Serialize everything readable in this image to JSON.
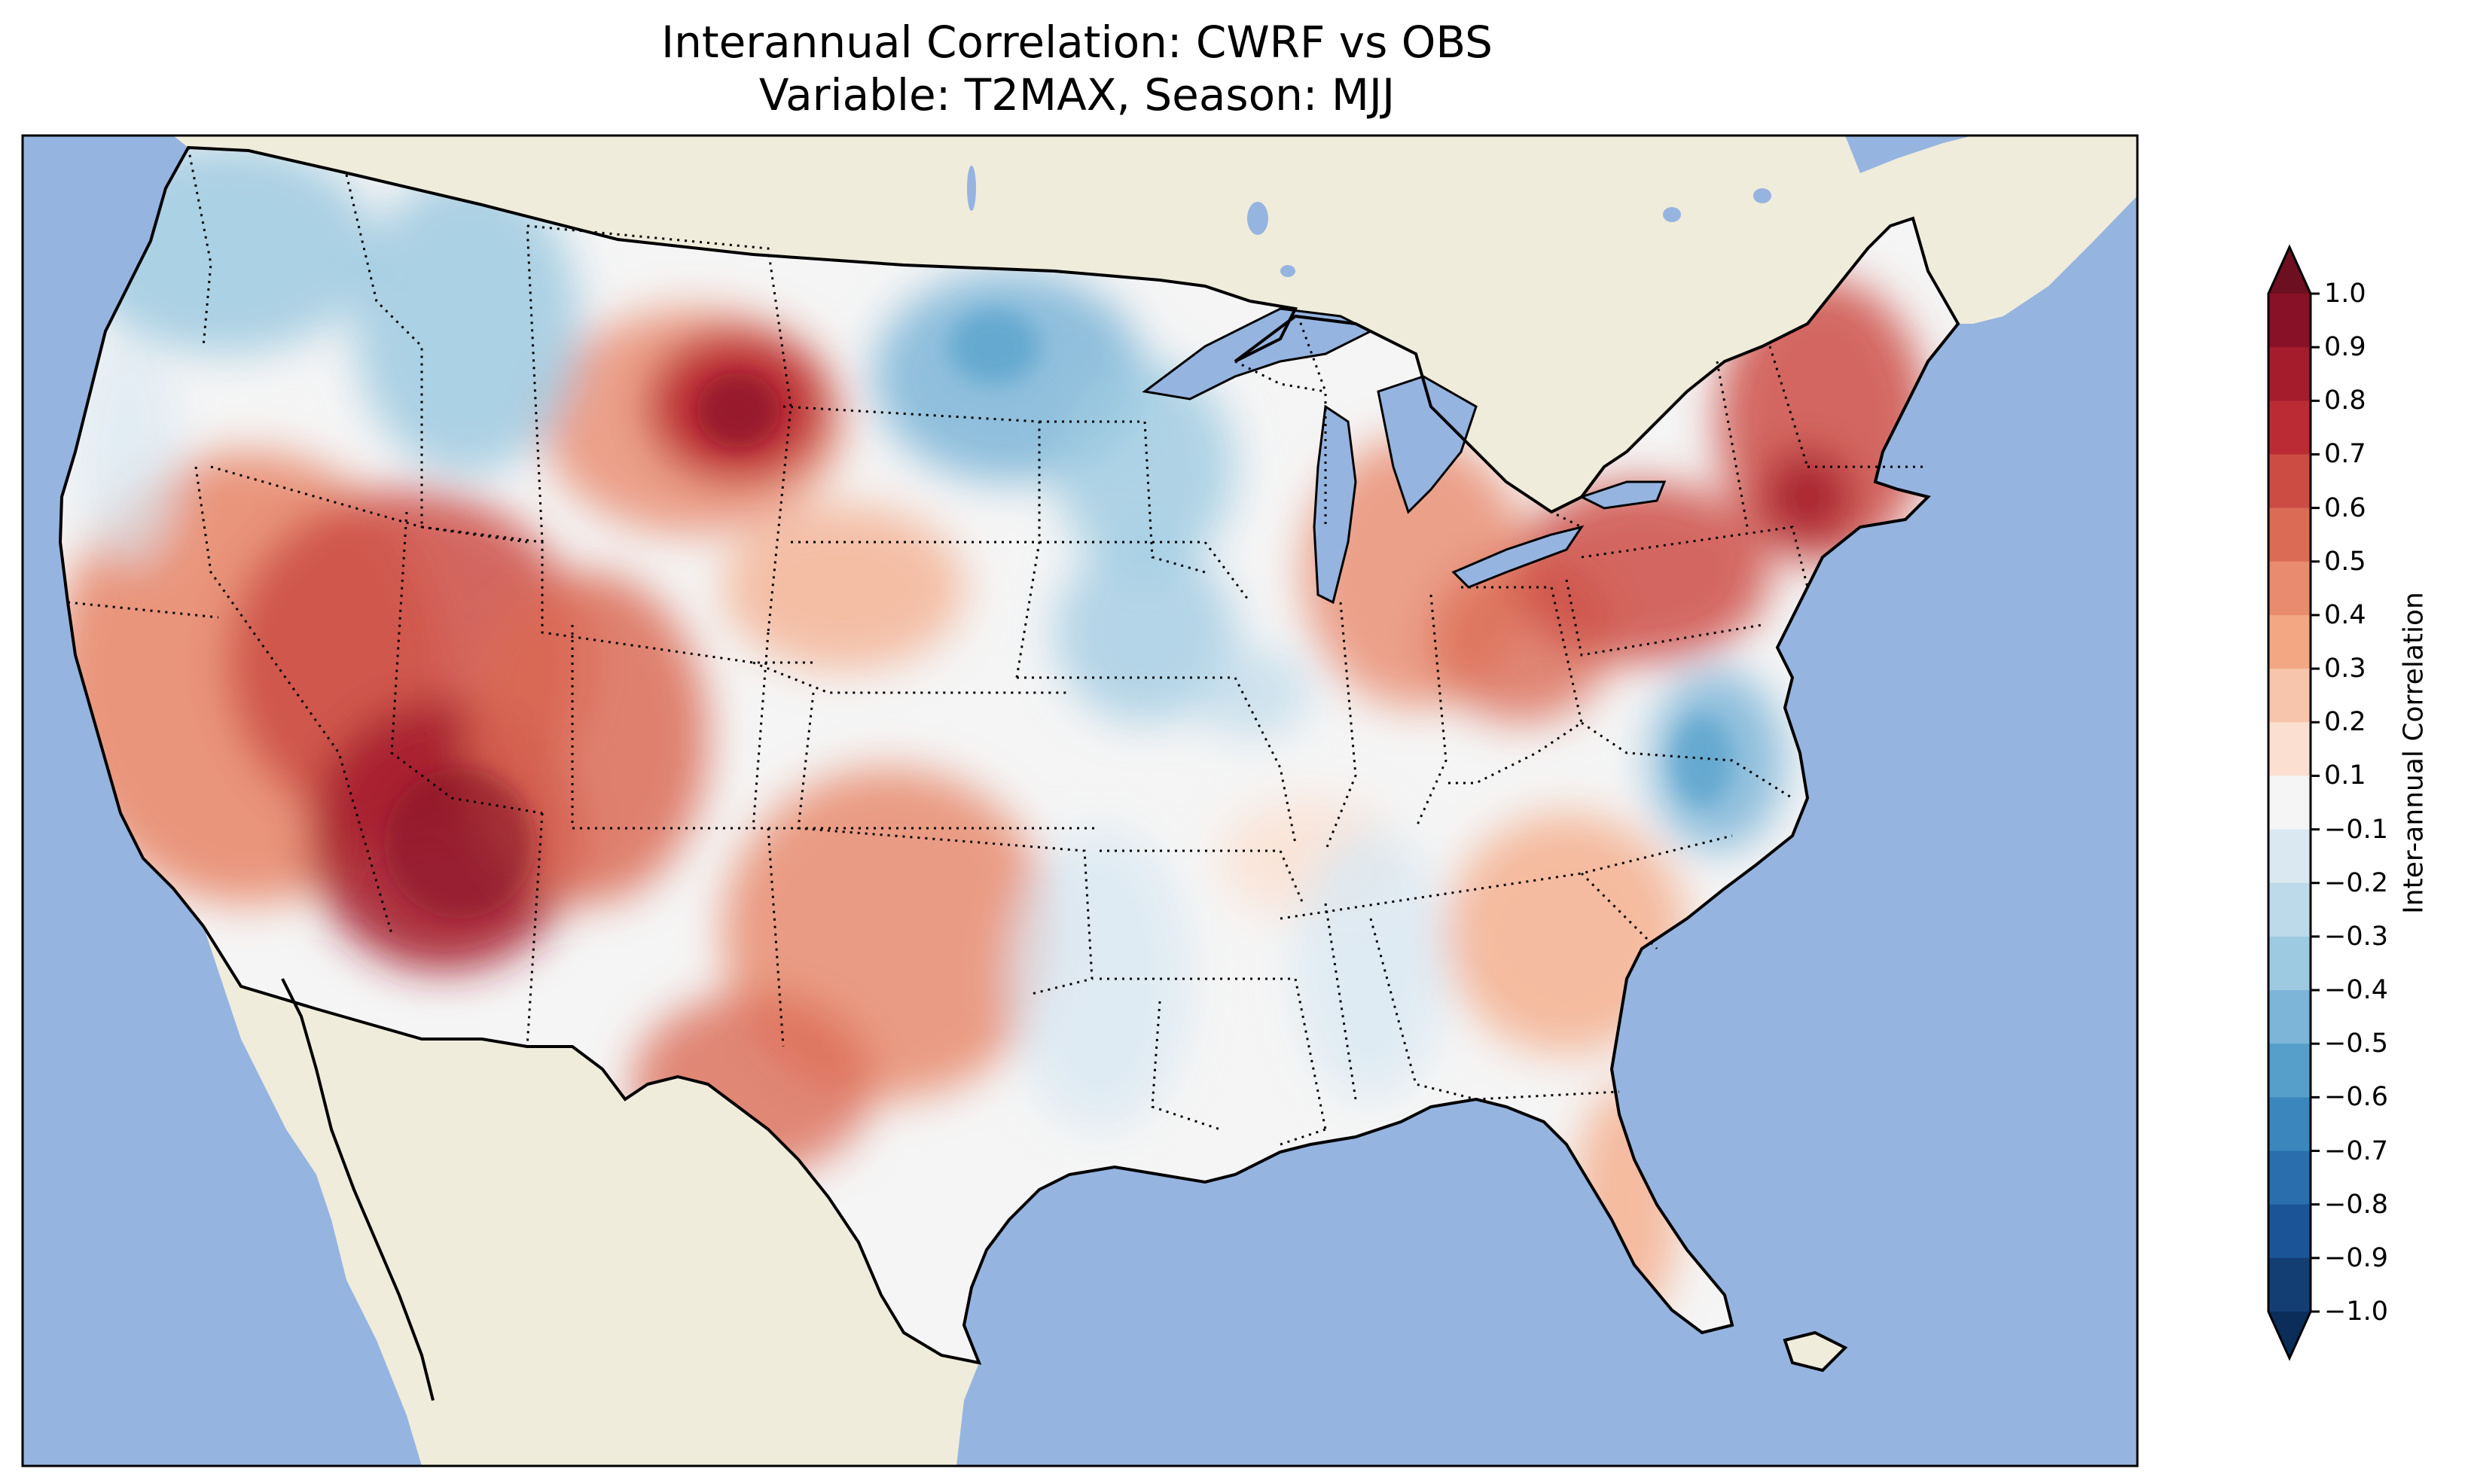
{
  "title_line1": "Interannual Correlation: CWRF vs OBS",
  "title_line2": "Variable: T2MAX, Season: MJJ",
  "colorbar": {
    "label": "Inter-annual Correlation",
    "ticks": [
      "1.0",
      "0.9",
      "0.8",
      "0.7",
      "0.6",
      "0.5",
      "0.4",
      "0.3",
      "0.2",
      "0.1",
      "−0.1",
      "−0.2",
      "−0.3",
      "−0.4",
      "−0.5",
      "−0.6",
      "−0.7",
      "−0.8",
      "−0.9",
      "−1.0"
    ],
    "colors_top_to_bottom": [
      "#891127",
      "#a51c2d",
      "#bb2b34",
      "#cc4c44",
      "#db6b55",
      "#e88b6e",
      "#f4a783",
      "#f7c5ab",
      "#fbe0d1",
      "#f5f5f5",
      "#dae8f2",
      "#bcdaea",
      "#9dcae1",
      "#7cb5d7",
      "#569fcb",
      "#3b86bd",
      "#2a6ead",
      "#1b5497",
      "#133e74"
    ],
    "over_color": "#6c0f21",
    "under_color": "#0b2d5a"
  },
  "map_colors": {
    "ocean": "#96b4e0",
    "land": "#efecdb",
    "lakes": "#96b4e0"
  },
  "regions": [
    {
      "name": "pacific-northwest",
      "value": -0.3
    },
    {
      "name": "northern-rockies",
      "value": -0.3
    },
    {
      "name": "california",
      "value": 0.6
    },
    {
      "name": "great-basin",
      "value": 0.7
    },
    {
      "name": "southwest",
      "value": 0.8
    },
    {
      "name": "wyoming-montana-border",
      "value": 0.8
    },
    {
      "name": "upper-midwest",
      "value": -0.4
    },
    {
      "name": "texas",
      "value": 0.5
    },
    {
      "name": "ohio-valley",
      "value": 0.5
    },
    {
      "name": "northeast",
      "value": 0.7
    },
    {
      "name": "virginia-coast",
      "value": -0.4
    },
    {
      "name": "southeast",
      "value": 0.3
    }
  ]
}
